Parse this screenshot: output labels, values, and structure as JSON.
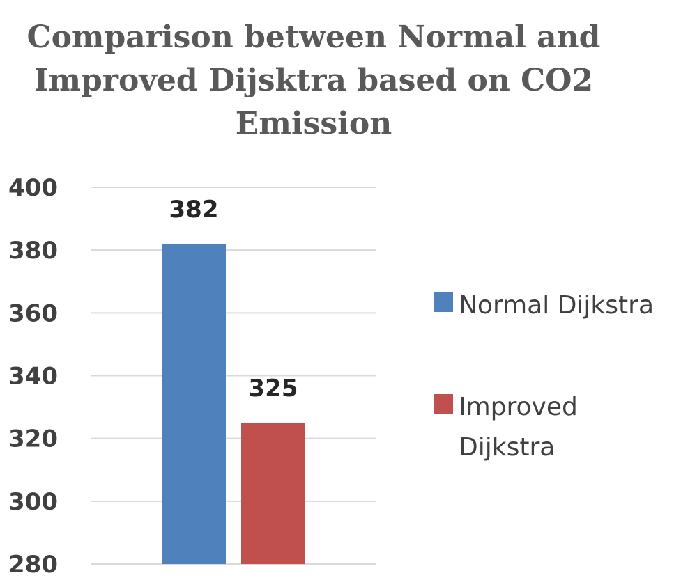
{
  "chart_data": {
    "type": "bar",
    "title_lines": [
      "Comparison between Normal and",
      "Improved Dijsktra based on CO2",
      "Emission"
    ],
    "xlabel": "",
    "ylabel": "",
    "ylim": [
      280,
      400
    ],
    "yticks": [
      400,
      380,
      360,
      340,
      320,
      300,
      280
    ],
    "grid": true,
    "legend_position": "right",
    "categories": [
      ""
    ],
    "series": [
      {
        "name": "Normal Dijkstra",
        "legend_lines": [
          "Normal Dijkstra"
        ],
        "values": [
          382
        ],
        "data_label": "382",
        "color": "#4f81bd"
      },
      {
        "name": "Improved Dijkstra",
        "legend_lines": [
          "Improved",
          "Dijkstra"
        ],
        "values": [
          325
        ],
        "data_label": "325",
        "color": "#c0504d"
      }
    ]
  }
}
